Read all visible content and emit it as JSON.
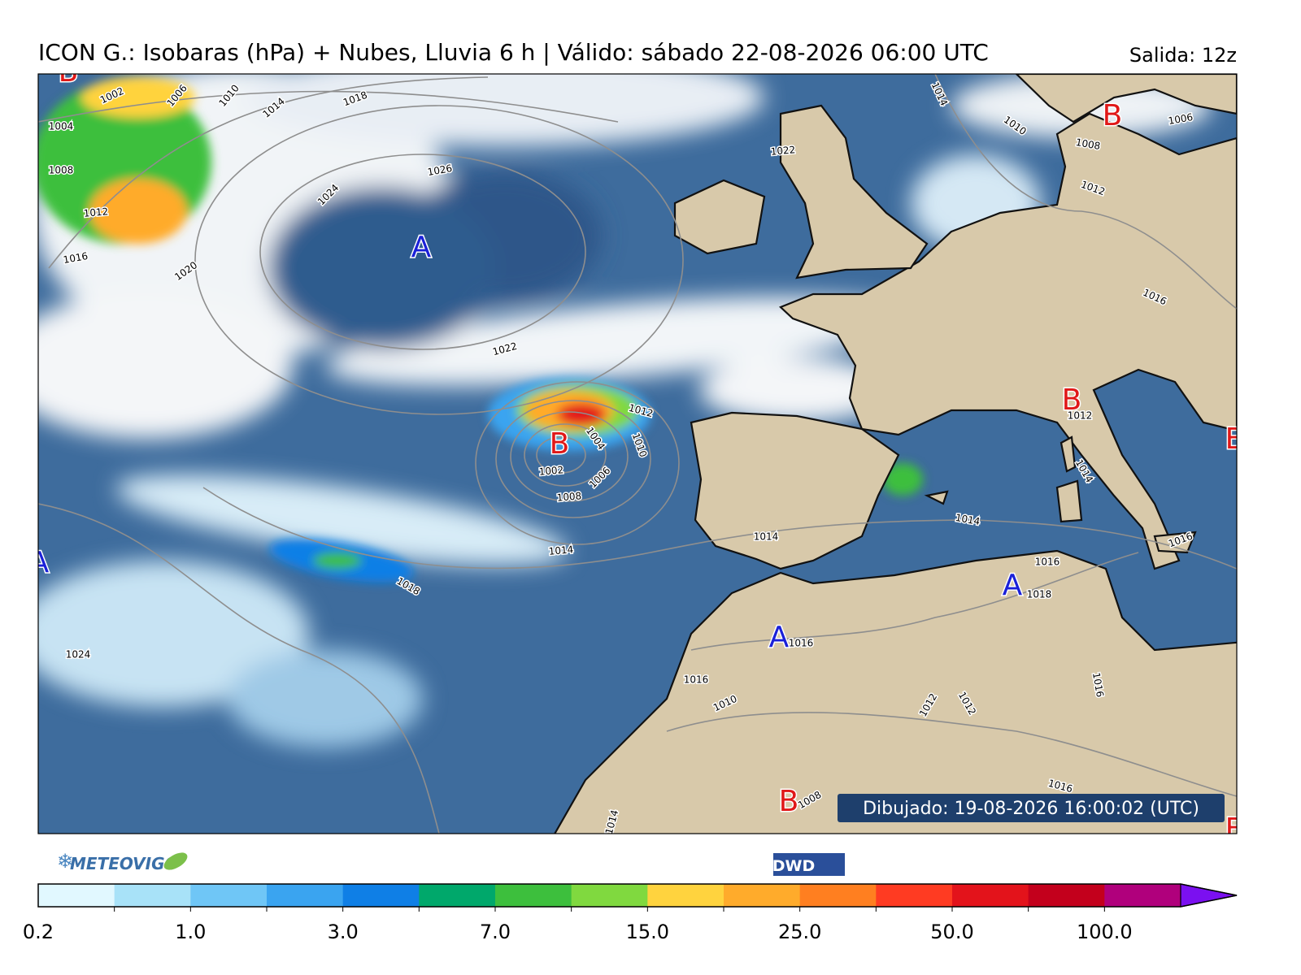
{
  "header": {
    "title": "ICON G.: Isobaras (hPa) + Nubes, Lluvia 6 h | Válido: sábado 22-08-2026 06:00 UTC",
    "run": "Salida: 12z"
  },
  "map": {
    "pressure_centers": [
      "B",
      "B",
      "A",
      "B",
      "B",
      "A",
      "B",
      "A",
      "A",
      "B",
      "B"
    ],
    "isobar_labels": [
      "1002",
      "1006",
      "1010",
      "1014",
      "1018",
      "1004",
      "1008",
      "1012",
      "1016",
      "1020",
      "1024",
      "1026",
      "1022",
      "1012",
      "1004",
      "1010",
      "1002",
      "1006",
      "1008",
      "1014",
      "1018",
      "1024",
      "1014",
      "1014",
      "1014",
      "1010",
      "1006",
      "1008",
      "1012",
      "1016",
      "1022",
      "1012",
      "1014",
      "1016",
      "1016",
      "1018",
      "1016",
      "1016",
      "1010",
      "1012",
      "1012",
      "1016",
      "1016",
      "1008",
      "1014"
    ],
    "drawn": "Dibujado: 19-08-2026 16:00:02 (UTC)"
  },
  "logos": {
    "left": "METEOVIGO",
    "right": "DWD"
  },
  "colorbar": {
    "colors": [
      "#e1f8ff",
      "#a8e2f8",
      "#6fc6f6",
      "#3aa4f0",
      "#0f7fe6",
      "#00a86b",
      "#3dbf3d",
      "#80d93f",
      "#ffd33e",
      "#ffab2b",
      "#ff7f20",
      "#ff3b22",
      "#e3131b",
      "#c3001c",
      "#b0007c"
    ],
    "extend_color": "#7b10f0",
    "ticks": [
      "0.2",
      "1.0",
      "3.0",
      "7.0",
      "15.0",
      "25.0",
      "50.0",
      "100.0"
    ]
  }
}
